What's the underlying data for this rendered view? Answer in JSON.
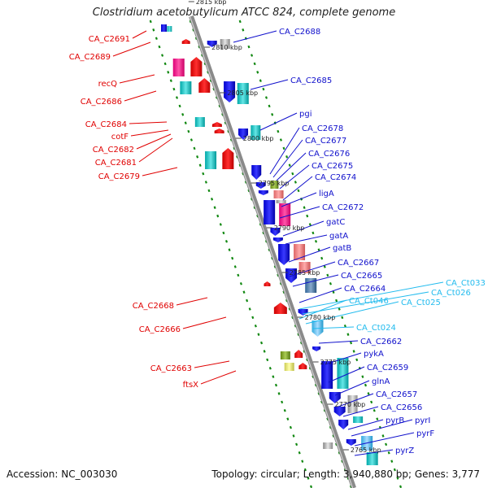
{
  "title": "Clostridium acetobutylicum ATCC 824, complete genome",
  "footer": {
    "accession": "Accession: NC_003030",
    "summary": "Topology: circular; Length: 3,940,880 bp; Genes: 3,777"
  },
  "colors": {
    "left_label": "#e00000",
    "right_label": "#1010cc",
    "rna_label": "#22bbee",
    "strand_dots": "#118811",
    "backbone": "#8a8a8a"
  },
  "ruler": [
    "2815 kbp",
    "2810 kbp",
    "2805 kbp",
    "2800 kbp",
    "2795 kbp",
    "2790 kbp",
    "2785 kbp",
    "2780 kbp",
    "2775 kbp",
    "2770 kbp",
    "2765 kbp"
  ],
  "left_labels": [
    "CA_C2691",
    "CA_C2689",
    "recQ",
    "CA_C2686",
    "CA_C2684",
    "cotF",
    "CA_C2682",
    "CA_C2681",
    "CA_C2679",
    "CA_C2668",
    "CA_C2666",
    "CA_C2663",
    "ftsX"
  ],
  "right_labels": [
    "CA_C2688",
    "CA_C2685",
    "pgi",
    "CA_C2678",
    "CA_C2677",
    "CA_C2676",
    "CA_C2675",
    "CA_C2674",
    "ligA",
    "CA_C2672",
    "gatC",
    "gatA",
    "gatB",
    "CA_C2667",
    "CA_C2665",
    "CA_C2664",
    "CA_C2662",
    "pykA",
    "CA_C2659",
    "glnA",
    "CA_C2657",
    "CA_C2656",
    "pyrB",
    "pyrI",
    "pyrF",
    "pyrZ"
  ],
  "rna_labels": [
    "CA_Ct033",
    "CA_Ct026",
    "CA_Ct046",
    "CA_Ct025",
    "CA_Ct024"
  ]
}
